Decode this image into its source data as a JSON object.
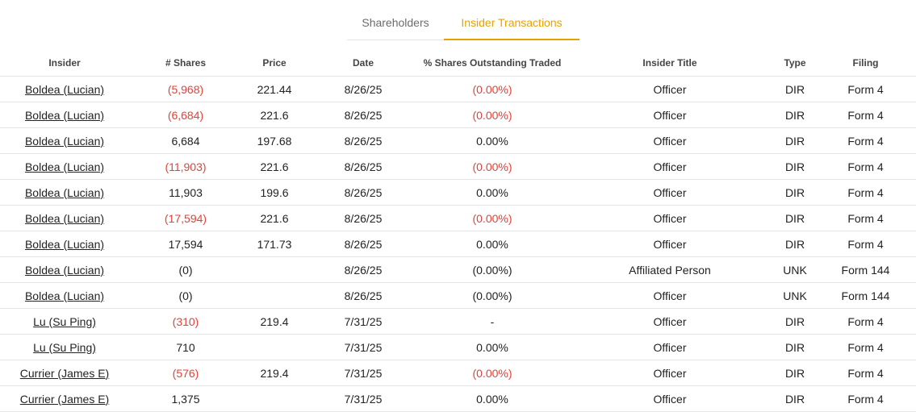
{
  "tabs": [
    {
      "label": "Shareholders",
      "active": false
    },
    {
      "label": "Insider Transactions",
      "active": true
    }
  ],
  "colors": {
    "accent": "#e8a200",
    "negative": "#e0433a"
  },
  "table": {
    "headers": [
      "Insider",
      "# Shares",
      "Price",
      "Date",
      "% Shares Outstanding Traded",
      "Insider Title",
      "Type",
      "Filing"
    ],
    "rows": [
      {
        "insider": "Boldea (Lucian)",
        "shares": "(5,968)",
        "shares_negative": true,
        "price": "221.44",
        "date": "8/26/25",
        "pct": "(0.00%)",
        "pct_negative": true,
        "title": "Officer",
        "type": "DIR",
        "filing": "Form 4"
      },
      {
        "insider": "Boldea (Lucian)",
        "shares": "(6,684)",
        "shares_negative": true,
        "price": "221.6",
        "date": "8/26/25",
        "pct": "(0.00%)",
        "pct_negative": true,
        "title": "Officer",
        "type": "DIR",
        "filing": "Form 4"
      },
      {
        "insider": "Boldea (Lucian)",
        "shares": "6,684",
        "shares_negative": false,
        "price": "197.68",
        "date": "8/26/25",
        "pct": "0.00%",
        "pct_negative": false,
        "title": "Officer",
        "type": "DIR",
        "filing": "Form 4"
      },
      {
        "insider": "Boldea (Lucian)",
        "shares": "(11,903)",
        "shares_negative": true,
        "price": "221.6",
        "date": "8/26/25",
        "pct": "(0.00%)",
        "pct_negative": true,
        "title": "Officer",
        "type": "DIR",
        "filing": "Form 4"
      },
      {
        "insider": "Boldea (Lucian)",
        "shares": "11,903",
        "shares_negative": false,
        "price": "199.6",
        "date": "8/26/25",
        "pct": "0.00%",
        "pct_negative": false,
        "title": "Officer",
        "type": "DIR",
        "filing": "Form 4"
      },
      {
        "insider": "Boldea (Lucian)",
        "shares": "(17,594)",
        "shares_negative": true,
        "price": "221.6",
        "date": "8/26/25",
        "pct": "(0.00%)",
        "pct_negative": true,
        "title": "Officer",
        "type": "DIR",
        "filing": "Form 4"
      },
      {
        "insider": "Boldea (Lucian)",
        "shares": "17,594",
        "shares_negative": false,
        "price": "171.73",
        "date": "8/26/25",
        "pct": "0.00%",
        "pct_negative": false,
        "title": "Officer",
        "type": "DIR",
        "filing": "Form 4"
      },
      {
        "insider": "Boldea (Lucian)",
        "shares": "(0)",
        "shares_negative": false,
        "price": "",
        "date": "8/26/25",
        "pct": "(0.00%)",
        "pct_negative": false,
        "title": "Affiliated Person",
        "type": "UNK",
        "filing": "Form 144"
      },
      {
        "insider": "Boldea (Lucian)",
        "shares": "(0)",
        "shares_negative": false,
        "price": "",
        "date": "8/26/25",
        "pct": "(0.00%)",
        "pct_negative": false,
        "title": "Officer",
        "type": "UNK",
        "filing": "Form 144"
      },
      {
        "insider": "Lu (Su Ping)",
        "shares": "(310)",
        "shares_negative": true,
        "price": "219.4",
        "date": "7/31/25",
        "pct": "-",
        "pct_negative": false,
        "title": "Officer",
        "type": "DIR",
        "filing": "Form 4"
      },
      {
        "insider": "Lu (Su Ping)",
        "shares": "710",
        "shares_negative": false,
        "price": "",
        "date": "7/31/25",
        "pct": "0.00%",
        "pct_negative": false,
        "title": "Officer",
        "type": "DIR",
        "filing": "Form 4"
      },
      {
        "insider": "Currier (James E)",
        "shares": "(576)",
        "shares_negative": true,
        "price": "219.4",
        "date": "7/31/25",
        "pct": "(0.00%)",
        "pct_negative": true,
        "title": "Officer",
        "type": "DIR",
        "filing": "Form 4"
      },
      {
        "insider": "Currier (James E)",
        "shares": "1,375",
        "shares_negative": false,
        "price": "",
        "date": "7/31/25",
        "pct": "0.00%",
        "pct_negative": false,
        "title": "Officer",
        "type": "DIR",
        "filing": "Form 4"
      }
    ]
  }
}
